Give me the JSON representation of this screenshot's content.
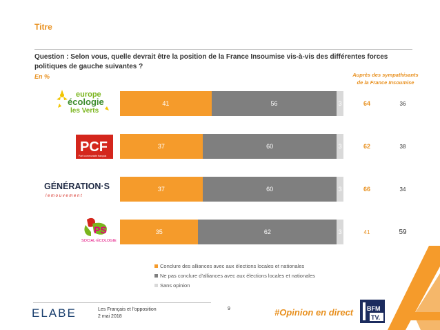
{
  "page": {
    "title": "Titre",
    "question": "Question : Selon vous, quelle devrait être la position de la France Insoumise vis-à-vis des différentes forces politiques de gauche suivantes ?",
    "en_pct": "En %",
    "aupres_line1": "Auprès des sympathisants",
    "aupres_line2": "de la France Insoumise"
  },
  "logos": {
    "eelv": {
      "line1": "europe",
      "line2": "écologie",
      "line3": "les Verts"
    },
    "pcf": {
      "main": "PCF",
      "sub": "Parti communiste français"
    },
    "generations": {
      "main": "GÉNÉRATION·S",
      "sub": "l e   m o u v e m e n t"
    },
    "ps": {
      "main": "PS",
      "sub": "SOCIAL·ÉCOLOGIE"
    }
  },
  "colors": {
    "accent": "#e8901f",
    "series1": "#f59b2b",
    "series2": "#7f7f7f",
    "series3": "#d9d9d9"
  },
  "chart_data": {
    "type": "bar",
    "stacked": true,
    "orientation": "horizontal",
    "categories": [
      "europe écologie les Verts",
      "PCF",
      "GÉNÉRATION·S",
      "PS"
    ],
    "series": [
      {
        "name": "Conclure des alliances avec aux élections locales et nationales",
        "values": [
          41,
          37,
          37,
          35
        ]
      },
      {
        "name": "Ne pas conclure d'alliances avec aux élections locales et nationales",
        "values": [
          56,
          60,
          60,
          62
        ]
      },
      {
        "name": "Sans opinion",
        "values": [
          3,
          3,
          3,
          3
        ]
      }
    ],
    "side_column_label": "Auprès des sympathisants de la France Insoumise",
    "side_values_conclure": [
      64,
      62,
      66,
      41
    ],
    "side_values_ne_pas": [
      36,
      38,
      34,
      59
    ]
  },
  "footer": {
    "brand": "ELABE",
    "line1": "Les Français et l'opposition",
    "line2": "2 mai 2018",
    "page_number": "9",
    "hashtag": "#Opinion en direct",
    "tv1": "BFM",
    "tv2": "TV."
  }
}
